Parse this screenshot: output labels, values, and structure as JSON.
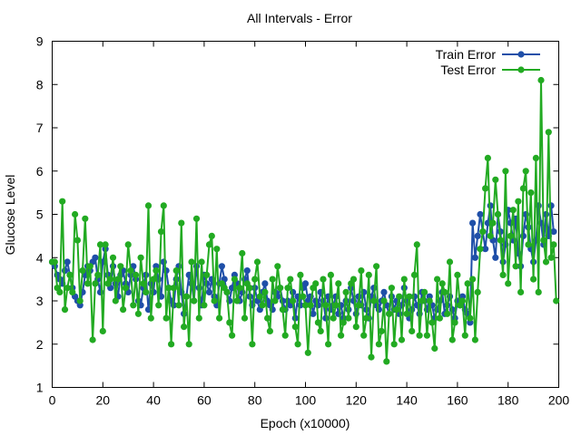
{
  "chart_data": {
    "type": "line",
    "title": "All Intervals - Error",
    "xlabel": "Epoch (x10000)",
    "ylabel": "Glucose Level",
    "xlim": [
      0,
      200
    ],
    "ylim": [
      1,
      9
    ],
    "xticks": [
      0,
      20,
      40,
      60,
      80,
      100,
      120,
      140,
      160,
      180,
      200
    ],
    "yticks": [
      1,
      2,
      3,
      4,
      5,
      6,
      7,
      8,
      9
    ],
    "grid": false,
    "legend_position": "top-right",
    "series": [
      {
        "name": "Train Error",
        "color": "#1f4fa8",
        "values": [
          3.9,
          3.8,
          3.6,
          3.5,
          3.4,
          3.7,
          3.9,
          3.6,
          3.3,
          3.1,
          3.0,
          2.9,
          3.2,
          3.6,
          3.8,
          3.7,
          3.9,
          4.0,
          3.5,
          3.2,
          3.9,
          4.2,
          3.6,
          3.3,
          3.8,
          3.4,
          3.1,
          3.6,
          3.7,
          3.4,
          3.2,
          3.6,
          3.8,
          3.5,
          3.0,
          2.9,
          3.3,
          3.6,
          2.8,
          3.4,
          3.2,
          3.8,
          3.5,
          3.1,
          3.9,
          3.7,
          3.3,
          3.0,
          2.9,
          3.5,
          3.8,
          3.2,
          2.7,
          3.1,
          3.6,
          3.4,
          3.0,
          3.8,
          3.3,
          2.9,
          3.6,
          3.4,
          3.2,
          3.5,
          3.1,
          2.9,
          3.4,
          3.8,
          3.5,
          3.2,
          3.0,
          3.3,
          3.6,
          3.4,
          3.0,
          3.2,
          3.5,
          3.7,
          3.1,
          2.9,
          3.3,
          3.0,
          2.8,
          3.2,
          3.4,
          3.0,
          2.9,
          2.8,
          3.2,
          3.1,
          3.3,
          3.0,
          2.8,
          3.0,
          2.9,
          3.2,
          2.6,
          3.1,
          2.9,
          3.3,
          3.4,
          3.0,
          3.1,
          2.7,
          3.0,
          2.9,
          3.2,
          3.0,
          2.6,
          3.1,
          2.8,
          2.9,
          3.1,
          2.7,
          2.9,
          2.6,
          3.0,
          2.8,
          3.3,
          3.0,
          2.7,
          3.1,
          2.9,
          3.2,
          2.8,
          2.6,
          3.1,
          3.3,
          2.9,
          2.8,
          3.0,
          3.2,
          2.9,
          2.7,
          3.1,
          2.8,
          3.0,
          2.7,
          2.9,
          3.3,
          3.0,
          2.6,
          2.8,
          3.1,
          2.9,
          2.7,
          3.2,
          3.0,
          2.8,
          3.1,
          2.9,
          2.6,
          2.8,
          3.0,
          3.2,
          2.7,
          2.9,
          3.1,
          2.8,
          2.6,
          3.0,
          2.9,
          3.1,
          2.8,
          2.7,
          2.5,
          4.8,
          4.0,
          4.5,
          5.0,
          4.6,
          4.2,
          4.8,
          5.2,
          4.4,
          4.0,
          5.0,
          4.6,
          3.9,
          4.3,
          5.1,
          4.8,
          4.4,
          4.9,
          4.1,
          3.8,
          4.5,
          5.0,
          4.7,
          4.2,
          3.9,
          4.4,
          5.2,
          4.8,
          4.3,
          5.0,
          4.5,
          5.2,
          4.6
        ],
        "markers": true
      },
      {
        "name": "Test Error",
        "color": "#22aa22",
        "values": [
          3.9,
          3.9,
          3.3,
          3.2,
          5.3,
          2.8,
          3.3,
          3.6,
          3.2,
          5.0,
          4.4,
          3.0,
          3.7,
          4.9,
          3.4,
          3.8,
          2.1,
          3.4,
          3.6,
          4.3,
          2.3,
          4.3,
          3.4,
          3.5,
          4.0,
          3.0,
          3.5,
          3.8,
          2.8,
          3.3,
          4.3,
          3.7,
          2.9,
          3.6,
          2.7,
          4.0,
          3.4,
          3.2,
          5.2,
          2.6,
          3.5,
          3.7,
          2.9,
          4.6,
          5.2,
          2.6,
          3.3,
          2.0,
          3.3,
          3.7,
          2.9,
          4.8,
          2.4,
          3.1,
          2.0,
          3.9,
          3.0,
          4.9,
          2.6,
          3.9,
          2.9,
          3.6,
          4.3,
          4.5,
          3.0,
          4.2,
          2.6,
          3.4,
          3.3,
          3.2,
          2.5,
          2.2,
          3.5,
          3.0,
          3.3,
          4.1,
          2.6,
          3.4,
          3.3,
          2.0,
          3.5,
          3.9,
          3.1,
          2.9,
          3.2,
          2.6,
          2.3,
          3.5,
          3.0,
          3.8,
          3.3,
          2.8,
          2.2,
          3.3,
          3.5,
          3.0,
          2.4,
          2.0,
          3.6,
          3.1,
          2.9,
          1.8,
          2.9,
          3.3,
          3.4,
          2.5,
          2.3,
          3.5,
          2.9,
          2.0,
          3.6,
          2.6,
          2.9,
          3.4,
          2.2,
          2.5,
          3.2,
          2.6,
          3.4,
          3.5,
          2.4,
          2.9,
          3.7,
          2.2,
          2.6,
          3.6,
          1.7,
          3.0,
          3.8,
          2.0,
          2.3,
          3.0,
          1.6,
          2.7,
          3.3,
          2.0,
          2.8,
          3.1,
          2.1,
          3.5,
          2.7,
          3.1,
          2.3,
          3.6,
          4.3,
          2.2,
          3.0,
          3.2,
          2.2,
          3.0,
          2.5,
          1.9,
          3.5,
          2.6,
          3.4,
          3.2,
          2.7,
          3.9,
          2.1,
          2.5,
          3.6,
          2.9,
          3.0,
          2.2,
          3.4,
          2.6,
          3.5,
          2.1,
          3.2,
          4.2,
          4.6,
          5.6,
          6.3,
          4.5,
          4.8,
          5.8,
          5.0,
          4.4,
          3.6,
          6.0,
          3.4,
          4.5,
          5.1,
          3.8,
          5.3,
          3.2,
          5.6,
          6.0,
          4.3,
          5.5,
          3.5,
          6.3,
          3.2,
          8.1,
          4.4,
          3.9,
          6.9,
          4.0,
          4.3,
          3.0
        ]
      }
    ]
  }
}
